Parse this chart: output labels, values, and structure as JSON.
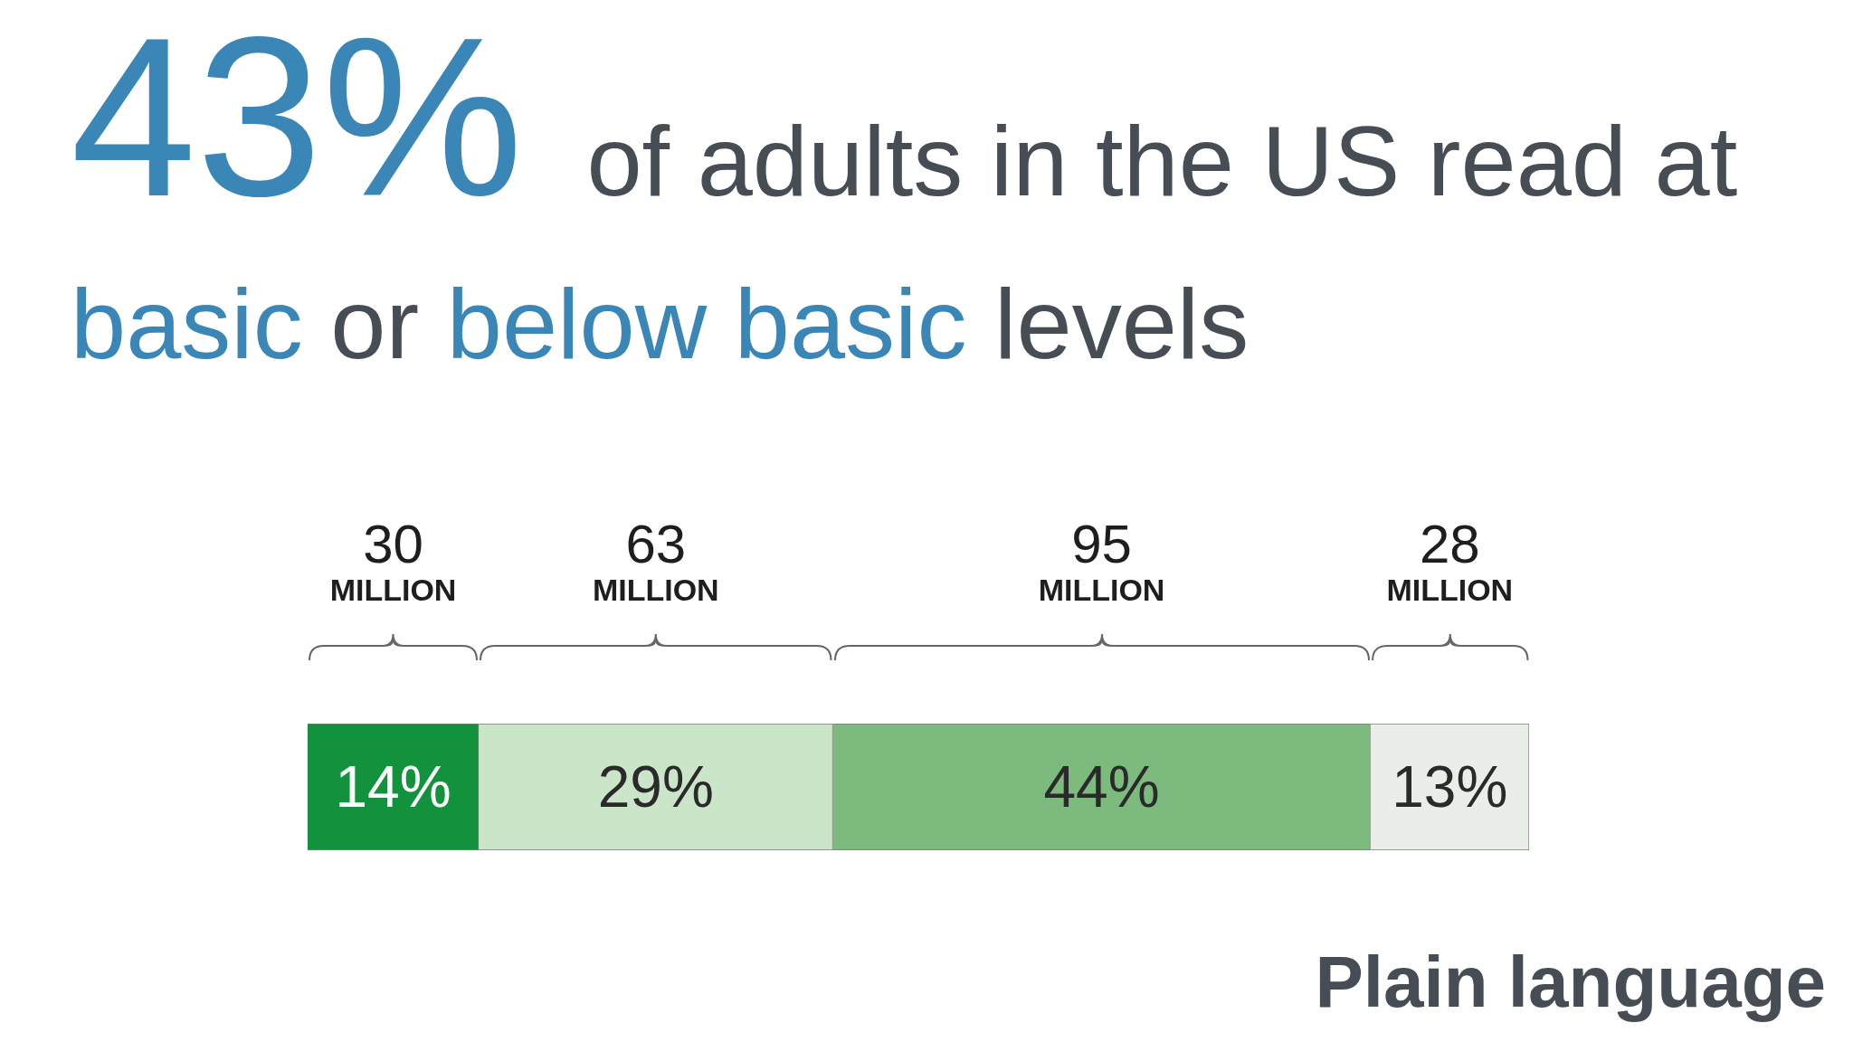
{
  "chart_data": {
    "type": "bar",
    "title": "43% of adults in the US read at basic or below basic levels",
    "orientation": "horizontal",
    "stacked": true,
    "categories": [
      null
    ],
    "series": [
      {
        "color": "#13923d",
        "values": [
          14
        ],
        "value_labels": [
          "14%"
        ]
      },
      {
        "color": "#cbe5c9",
        "values": [
          29
        ],
        "value_labels": [
          "29%"
        ]
      },
      {
        "color": "#7cba7e",
        "values": [
          44
        ],
        "value_labels": [
          "44%"
        ]
      },
      {
        "color": "#e9eee9",
        "values": [
          13
        ],
        "value_labels": [
          "13%"
        ]
      }
    ],
    "annotations": [
      "30 MILLION",
      "63 MILLION",
      "95 MILLION",
      "28 MILLION",
      "Plain language"
    ],
    "legend": false,
    "tick_labels": false
  }
}
